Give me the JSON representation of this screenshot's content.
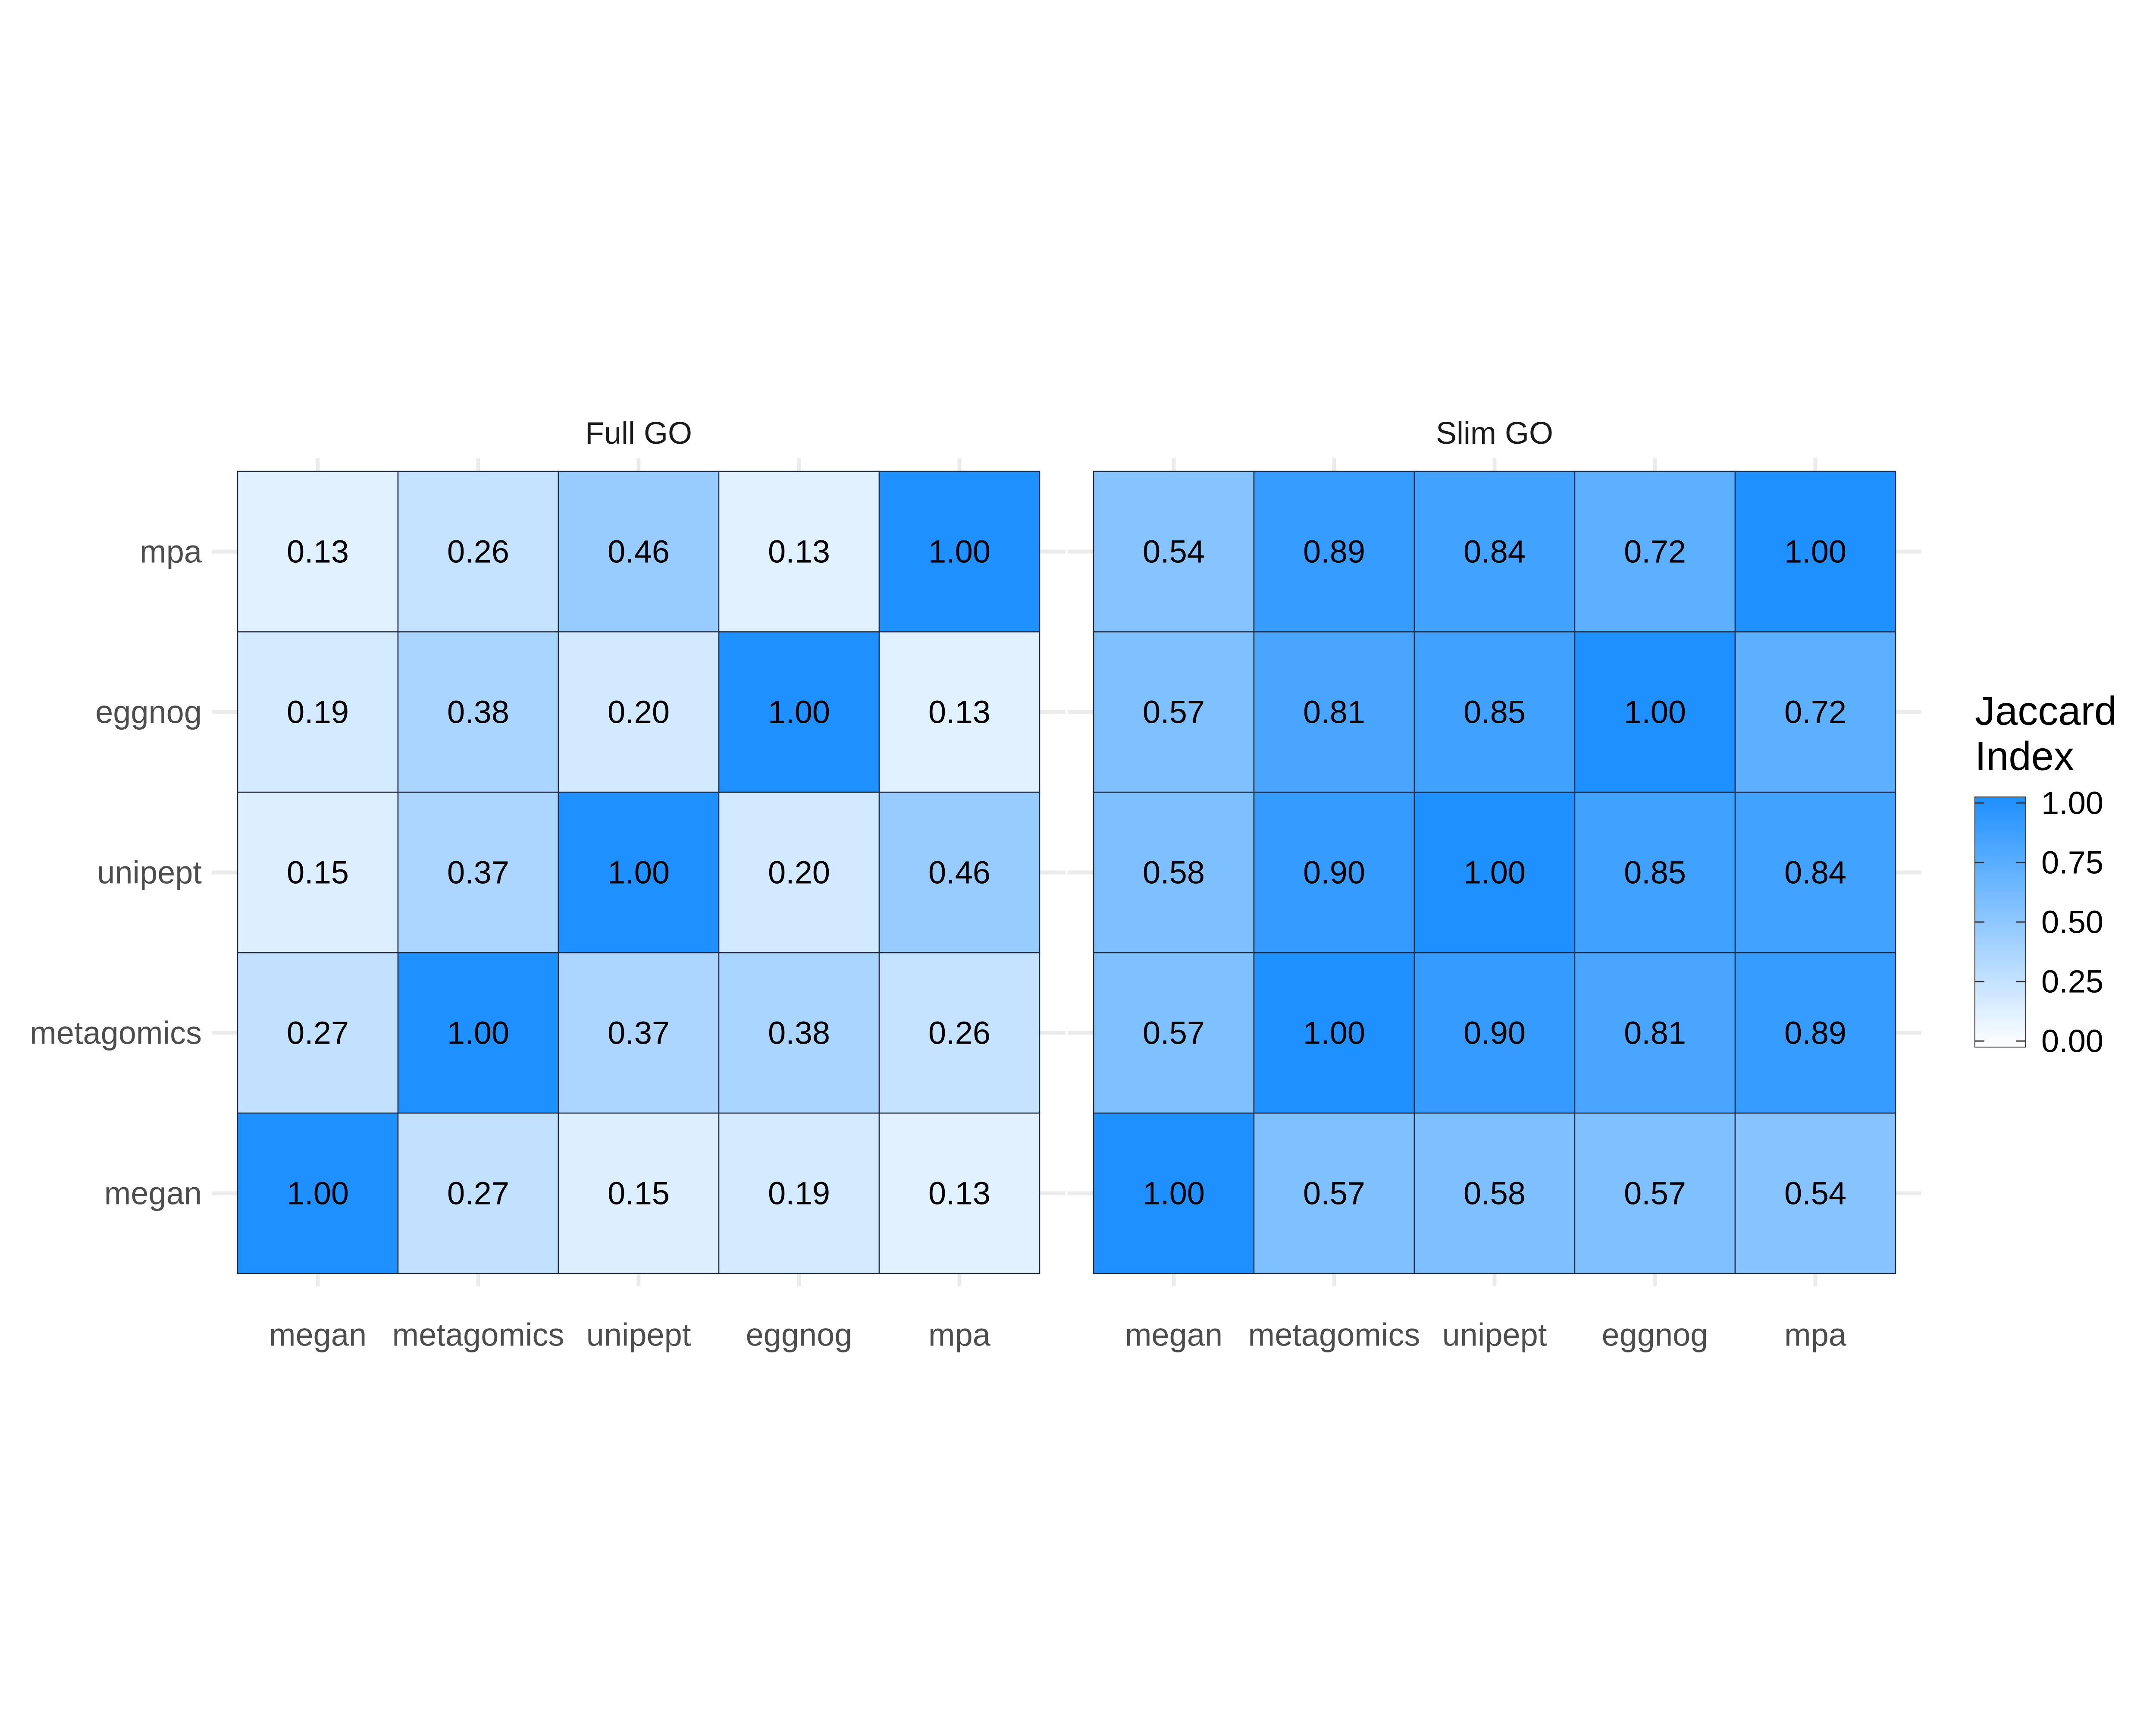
{
  "chart_data": {
    "type": "heatmap",
    "x_categories": [
      "megan",
      "metagomics",
      "unipept",
      "eggnog",
      "mpa"
    ],
    "y_categories": [
      "megan",
      "metagomics",
      "unipept",
      "eggnog",
      "mpa"
    ],
    "color_scale": {
      "low": "#ffffff",
      "high": "#1e90ff",
      "limits": [
        0,
        1
      ]
    },
    "panels": [
      {
        "title": "Full GO",
        "matrix": [
          [
            1.0,
            0.27,
            0.15,
            0.19,
            0.13
          ],
          [
            0.27,
            1.0,
            0.37,
            0.38,
            0.26
          ],
          [
            0.15,
            0.37,
            1.0,
            0.2,
            0.46
          ],
          [
            0.19,
            0.38,
            0.2,
            1.0,
            0.13
          ],
          [
            0.13,
            0.26,
            0.46,
            0.13,
            1.0
          ]
        ]
      },
      {
        "title": "Slim GO",
        "matrix": [
          [
            1.0,
            0.57,
            0.58,
            0.57,
            0.54
          ],
          [
            0.57,
            1.0,
            0.9,
            0.81,
            0.89
          ],
          [
            0.58,
            0.9,
            1.0,
            0.85,
            0.84
          ],
          [
            0.57,
            0.81,
            0.85,
            1.0,
            0.72
          ],
          [
            0.54,
            0.89,
            0.84,
            0.72,
            1.0
          ]
        ]
      }
    ],
    "legend": {
      "title_lines": [
        "Jaccard",
        "Index"
      ],
      "ticks": [
        0.0,
        0.25,
        0.5,
        0.75,
        1.0
      ],
      "tick_labels": [
        "0.00",
        "0.25",
        "0.50",
        "0.75",
        "1.00"
      ],
      "placement": "right"
    },
    "grid": true
  }
}
